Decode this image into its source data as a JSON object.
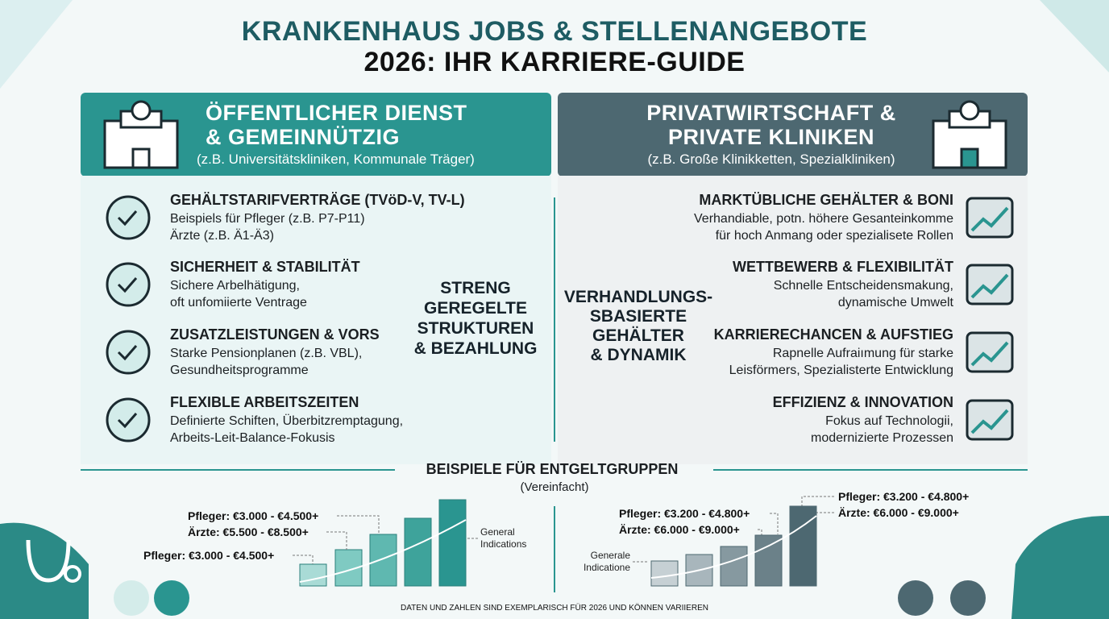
{
  "title": [
    "KRANKENHAUS JOBS & STELLENANGEBOTE",
    "2026: IHR KARRIERE-GUIDE"
  ],
  "left_panel": {
    "heading": [
      "ÖFFENTLICHER DIENST",
      "& GEMEINNÜTZIG"
    ],
    "subheading": "(z.B. Universitätskliniken, Kommunale Träger)",
    "items": [
      {
        "title": "GEHÄLTSTARIFVERTRÄGE (TVöD-V, TV-L)",
        "lines": [
          "Beispiels für Pfleger (z.B. P7-P11)",
          "Ärzte (z.B. Ä1-Ä3)"
        ]
      },
      {
        "title": "SICHERHEIT & STABILITÄT",
        "lines": [
          "Sichere Arbelhätigung,",
          "oft unfomiierte Ventrage"
        ]
      },
      {
        "title": "ZUSATZLEISTUNGEN & VORS",
        "lines": [
          "Starke Pensionplanen (z.B. VBL),",
          "Gesundheitsprogramme"
        ]
      },
      {
        "title": "FLEXIBLE ARBEITSZEITEN",
        "lines": [
          "Definierte Schiften, Überbitzremptagung,",
          "Arbeits-Leit-Balance-Fokusis"
        ]
      }
    ],
    "summary": [
      "STRENG",
      "GEREGELTE",
      "STRUKTUREN",
      "& BEZAHLUNG"
    ]
  },
  "right_panel": {
    "heading": [
      "PRIVATWIRTSCHAFT &",
      "PRIVATE KLINIKEN"
    ],
    "subheading": "(z.B. Große Klinikketten, Spezialkliniken)",
    "items": [
      {
        "title": "MARKTÜBLICHE GEHÄLTER & BONI",
        "lines": [
          "Verhandiable, potn. höhere Gesanteinkomme",
          "für hoch Anmang oder spezialisete Rollen"
        ]
      },
      {
        "title": "WETTBEWERB & FLEXIBILITÄT",
        "lines": [
          "Schnelle Entscheidensmakung,",
          "dynamische Umwelt"
        ]
      },
      {
        "title": "KARRIERECHANCEN & AUFSTIEG",
        "lines": [
          "Rapnelle Aufraiımung für starke",
          "Leisförmers, Spezialisterte Entwicklung"
        ]
      },
      {
        "title": "EFFIZIENZ & INNOVATION",
        "lines": [
          "Fokus auf Technologii,",
          "modernizierte Prozessen"
        ]
      }
    ],
    "summary": [
      "VERHANDLUNGS-",
      "SBASIERTE",
      "GEHÄLTER",
      "& DYNAMIK"
    ]
  },
  "salary_section": {
    "title": "BEISPIELE FÜR ENTGELTGRUPPEN",
    "subtitle": "(Vereinfacht)",
    "public_chart": {
      "labels": [
        "Pfleger: €3.000 - €4.500+",
        "Ärzte: €5.500 - €8.500+",
        "Pfleger: €3.000 - €4.500+"
      ],
      "note": [
        "General",
        "Indications"
      ]
    },
    "private_chart": {
      "labels": [
        "Pfleger: €3.200 - €4.800+",
        "Ärzte: €6.000 - €9.000+",
        "Pfleger: €3.200 - €4.800+",
        "Ärzte: €6.000 - €9.000+"
      ],
      "note": [
        "Generale",
        "Indicatione"
      ]
    }
  },
  "footer": "DATEN UND ZAHLEN SIND EXEMPLARISCH FÜR 2026 UND KÖNNEN VARIIEREN"
}
